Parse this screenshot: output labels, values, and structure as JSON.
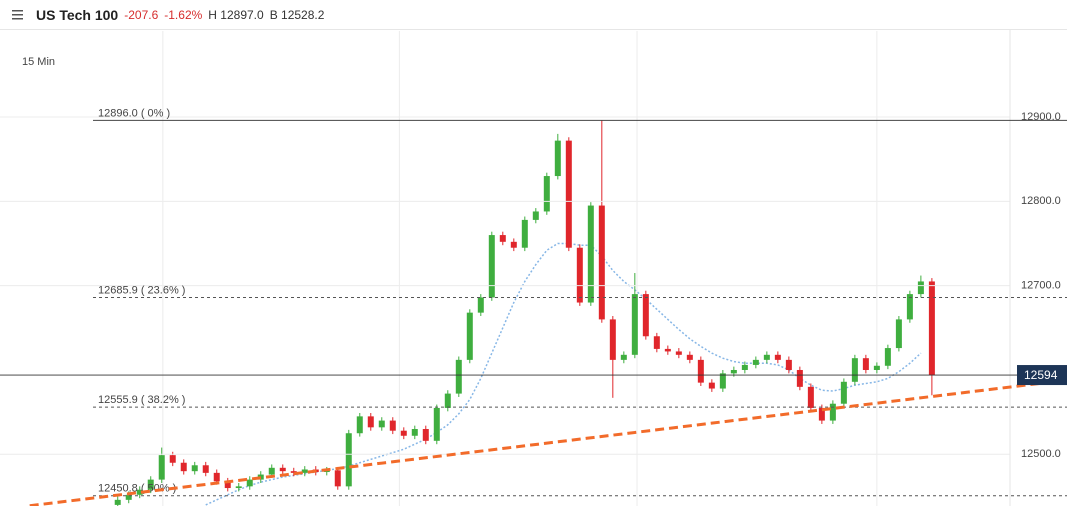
{
  "header": {
    "title": "US Tech 100",
    "change": "-207.6",
    "change_pct": "-1.62%",
    "high": "H 12897.0",
    "bid": "B 12528.2"
  },
  "chart_data": {
    "type": "candlestick",
    "timeframe": "15 Min",
    "xlim": [
      -10.7,
      81.1
    ],
    "xticks": [
      4.1,
      25.6,
      47.2,
      69
    ],
    "ylim": [
      12438.7,
      13003.2
    ],
    "yticks": [
      {
        "value": 12500,
        "label": "12500.0"
      },
      {
        "value": 12700,
        "label": "12700.0"
      },
      {
        "value": 12800,
        "label": "12800.0"
      },
      {
        "value": 12900,
        "label": "12900.0"
      }
    ],
    "grid": true,
    "up_color": "#3fae3f",
    "down_color": "#e0262b",
    "candles": {
      "open": [
        12440,
        12446,
        12452,
        12458,
        12470,
        12499,
        12490,
        12480,
        12487,
        12478,
        12468,
        12460,
        12462,
        12470,
        12476,
        12484,
        12480,
        12478,
        12482,
        12479,
        12481,
        12462,
        12525,
        12545,
        12532,
        12540,
        12528,
        12522,
        12530,
        12516,
        12555,
        12572,
        12612,
        12668,
        12686,
        12760,
        12752,
        12745,
        12778,
        12788,
        12830,
        12872,
        12745,
        12680,
        12795,
        12660,
        12612,
        12618,
        12690,
        12640,
        12625,
        12622,
        12618,
        12612,
        12585,
        12578,
        12596,
        12600,
        12606,
        12612,
        12618,
        12612,
        12600,
        12580,
        12555,
        12540,
        12560,
        12586,
        12614,
        12600,
        12605,
        12626,
        12660,
        12690,
        12705
      ],
      "high": [
        12450,
        12456,
        12462,
        12474,
        12508,
        12503,
        12494,
        12491,
        12491,
        12482,
        12472,
        12466,
        12474,
        12480,
        12488,
        12488,
        12484,
        12486,
        12486,
        12485,
        12485,
        12529,
        12549,
        12549,
        12544,
        12544,
        12532,
        12534,
        12534,
        12559,
        12576,
        12616,
        12672,
        12690,
        12764,
        12764,
        12756,
        12782,
        12792,
        12834,
        12880,
        12876,
        12749,
        12799,
        12896,
        12664,
        12622,
        12715,
        12694,
        12644,
        12629,
        12626,
        12622,
        12616,
        12589,
        12600,
        12604,
        12610,
        12616,
        12622,
        12622,
        12616,
        12604,
        12584,
        12559,
        12564,
        12590,
        12618,
        12618,
        12609,
        12630,
        12664,
        12694,
        12712,
        12709
      ],
      "low": [
        12436,
        12442,
        12448,
        12454,
        12466,
        12486,
        12476,
        12476,
        12474,
        12464,
        12456,
        12456,
        12458,
        12466,
        12472,
        12476,
        12474,
        12474,
        12475,
        12475,
        12458,
        12458,
        12521,
        12528,
        12528,
        12524,
        12518,
        12518,
        12512,
        12512,
        12551,
        12568,
        12608,
        12664,
        12682,
        12748,
        12741,
        12741,
        12774,
        12784,
        12826,
        12741,
        12676,
        12676,
        12656,
        12567,
        12608,
        12614,
        12636,
        12621,
        12618,
        12614,
        12608,
        12581,
        12574,
        12574,
        12592,
        12596,
        12602,
        12608,
        12608,
        12596,
        12576,
        12551,
        12536,
        12536,
        12556,
        12582,
        12596,
        12596,
        12601,
        12622,
        12656,
        12686,
        12570
      ],
      "close": [
        12446,
        12452,
        12458,
        12470,
        12499,
        12490,
        12480,
        12487,
        12478,
        12468,
        12460,
        12462,
        12470,
        12476,
        12484,
        12480,
        12478,
        12482,
        12479,
        12481,
        12462,
        12525,
        12545,
        12532,
        12540,
        12528,
        12522,
        12530,
        12516,
        12555,
        12572,
        12612,
        12668,
        12686,
        12760,
        12752,
        12745,
        12778,
        12788,
        12830,
        12872,
        12745,
        12680,
        12795,
        12660,
        12612,
        12618,
        12690,
        12640,
        12625,
        12622,
        12618,
        12612,
        12585,
        12578,
        12596,
        12600,
        12606,
        12612,
        12618,
        12612,
        12600,
        12580,
        12555,
        12540,
        12560,
        12586,
        12614,
        12600,
        12605,
        12626,
        12660,
        12690,
        12705,
        12594
      ]
    },
    "moving_average": {
      "color": "#86b6e6",
      "values": [
        null,
        null,
        null,
        null,
        null,
        null,
        null,
        null,
        12440,
        12446,
        12452,
        12458,
        12463,
        12467,
        12470,
        12473,
        12475,
        12477,
        12479,
        12481,
        12483,
        12486,
        12490,
        12494,
        12498,
        12502,
        12506,
        12512,
        12518,
        12526,
        12535,
        12548,
        12565,
        12590,
        12620,
        12650,
        12680,
        12705,
        12725,
        12742,
        12750,
        12750,
        12748,
        12748,
        12735,
        12718,
        12705,
        12695,
        12684,
        12672,
        12660,
        12648,
        12637,
        12628,
        12620,
        12614,
        12610,
        12608,
        12608,
        12608,
        12606,
        12600,
        12590,
        12582,
        12576,
        12575,
        12578,
        12582,
        12584,
        12586,
        12590,
        12598,
        12608,
        12620,
        null
      ]
    },
    "trendline": {
      "color": "#f26b2a",
      "x": [
        -8,
        86.3
      ],
      "values": [
        12439,
        12588
      ]
    },
    "levels": [
      {
        "value": 12896.0,
        "label": "12896.0 ( 0% )",
        "line_style": "solid"
      },
      {
        "value": 12685.9,
        "label": "12685.9 ( 23.6% )",
        "line_style": "dashed"
      },
      {
        "value": 12555.9,
        "label": "12555.9 ( 38.2% )",
        "line_style": "dashed"
      },
      {
        "value": 12450.8,
        "label": "12450.8 ( 50% )",
        "line_style": "dashed"
      }
    ],
    "last_price": {
      "value": 12594,
      "label": "12594",
      "color": "#1d3557"
    }
  }
}
